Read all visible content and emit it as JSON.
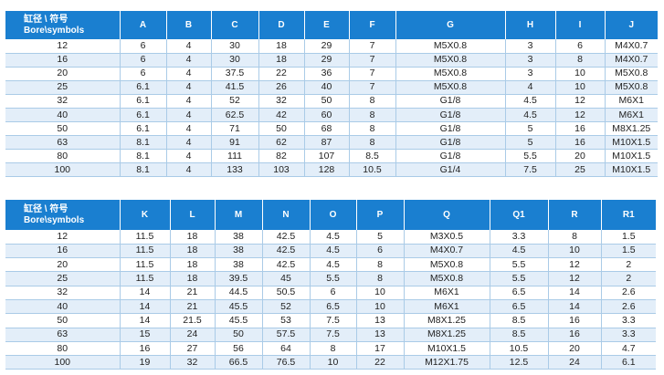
{
  "table1": {
    "header_line1": "缸径 \\ 符号",
    "header_line2": "Bore\\symbols",
    "columns": [
      "A",
      "B",
      "C",
      "D",
      "E",
      "F",
      "G",
      "H",
      "I",
      "J"
    ],
    "rows": [
      [
        "12",
        "6",
        "4",
        "30",
        "18",
        "29",
        "7",
        "M5X0.8",
        "3",
        "6",
        "M4X0.7"
      ],
      [
        "16",
        "6",
        "4",
        "30",
        "18",
        "29",
        "7",
        "M5X0.8",
        "3",
        "8",
        "M4X0.7"
      ],
      [
        "20",
        "6",
        "4",
        "37.5",
        "22",
        "36",
        "7",
        "M5X0.8",
        "3",
        "10",
        "M5X0.8"
      ],
      [
        "25",
        "6.1",
        "4",
        "41.5",
        "26",
        "40",
        "7",
        "M5X0.8",
        "4",
        "10",
        "M5X0.8"
      ],
      [
        "32",
        "6.1",
        "4",
        "52",
        "32",
        "50",
        "8",
        "G1/8",
        "4.5",
        "12",
        "M6X1"
      ],
      [
        "40",
        "6.1",
        "4",
        "62.5",
        "42",
        "60",
        "8",
        "G1/8",
        "4.5",
        "12",
        "M6X1"
      ],
      [
        "50",
        "6.1",
        "4",
        "71",
        "50",
        "68",
        "8",
        "G1/8",
        "5",
        "16",
        "M8X1.25"
      ],
      [
        "63",
        "8.1",
        "4",
        "91",
        "62",
        "87",
        "8",
        "G1/8",
        "5",
        "16",
        "M10X1.5"
      ],
      [
        "80",
        "8.1",
        "4",
        "111",
        "82",
        "107",
        "8.5",
        "G1/8",
        "5.5",
        "20",
        "M10X1.5"
      ],
      [
        "100",
        "8.1",
        "4",
        "133",
        "103",
        "128",
        "10.5",
        "G1/4",
        "7.5",
        "25",
        "M10X1.5"
      ]
    ]
  },
  "table2": {
    "header_line1": "缸径 \\ 符号",
    "header_line2": "Bore\\symbols",
    "columns": [
      "K",
      "L",
      "M",
      "N",
      "O",
      "P",
      "Q",
      "Q1",
      "R",
      "R1"
    ],
    "rows": [
      [
        "12",
        "11.5",
        "18",
        "38",
        "42.5",
        "4.5",
        "5",
        "M3X0.5",
        "3.3",
        "8",
        "1.5"
      ],
      [
        "16",
        "11.5",
        "18",
        "38",
        "42.5",
        "4.5",
        "6",
        "M4X0.7",
        "4.5",
        "10",
        "1.5"
      ],
      [
        "20",
        "11.5",
        "18",
        "38",
        "42.5",
        "4.5",
        "8",
        "M5X0.8",
        "5.5",
        "12",
        "2"
      ],
      [
        "25",
        "11.5",
        "18",
        "39.5",
        "45",
        "5.5",
        "8",
        "M5X0.8",
        "5.5",
        "12",
        "2"
      ],
      [
        "32",
        "14",
        "21",
        "44.5",
        "50.5",
        "6",
        "10",
        "M6X1",
        "6.5",
        "14",
        "2.6"
      ],
      [
        "40",
        "14",
        "21",
        "45.5",
        "52",
        "6.5",
        "10",
        "M6X1",
        "6.5",
        "14",
        "2.6"
      ],
      [
        "50",
        "14",
        "21.5",
        "45.5",
        "53",
        "7.5",
        "13",
        "M8X1.25",
        "8.5",
        "16",
        "3.3"
      ],
      [
        "63",
        "15",
        "24",
        "50",
        "57.5",
        "7.5",
        "13",
        "M8X1.25",
        "8.5",
        "16",
        "3.3"
      ],
      [
        "80",
        "16",
        "27",
        "56",
        "64",
        "8",
        "17",
        "M10X1.5",
        "10.5",
        "20",
        "4.7"
      ],
      [
        "100",
        "19",
        "32",
        "66.5",
        "76.5",
        "10",
        "22",
        "M12X1.75",
        "12.5",
        "24",
        "6.1"
      ]
    ]
  }
}
